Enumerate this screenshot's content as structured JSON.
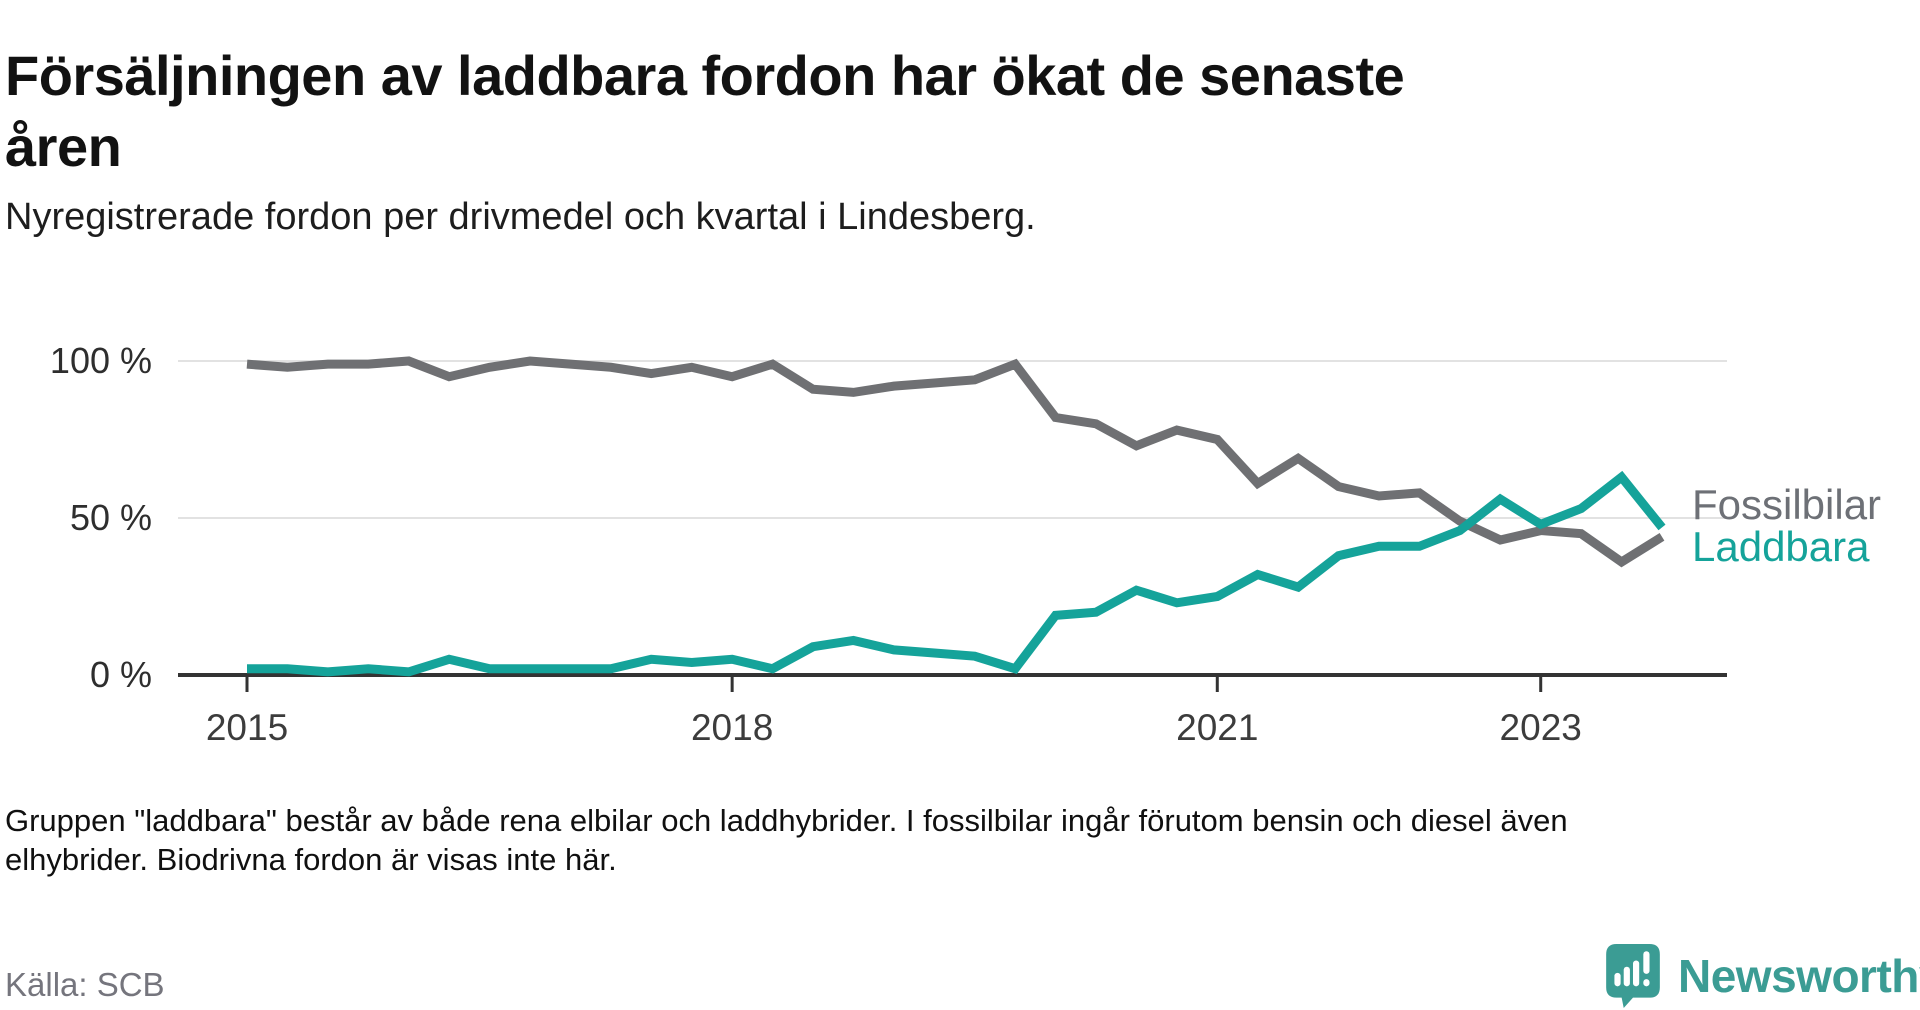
{
  "header": {
    "title_lines": [
      "Försäljningen av laddbara fordon har ökat de senaste",
      "åren"
    ],
    "subtitle": "Nyregistrerade fordon per drivmedel och kvartal i Lindesberg."
  },
  "chart_data": {
    "type": "line",
    "unit": "%",
    "categories": [
      "2015K1",
      "2015K2",
      "2015K3",
      "2015K4",
      "2016K1",
      "2016K2",
      "2016K3",
      "2016K4",
      "2017K1",
      "2017K2",
      "2017K3",
      "2017K4",
      "2018K1",
      "2018K2",
      "2018K3",
      "2018K4",
      "2019K1",
      "2019K2",
      "2019K3",
      "2019K4",
      "2020K1",
      "2020K2",
      "2020K3",
      "2020K4",
      "2021K1",
      "2021K2",
      "2021K3",
      "2021K4",
      "2022K1",
      "2022K2",
      "2022K3",
      "2022K4",
      "2023K1",
      "2023K2",
      "2023K3",
      "2023K4"
    ],
    "series": [
      {
        "name": "Fossilbilar",
        "color": "#6f7073",
        "values": [
          99,
          98,
          99,
          99,
          100,
          95,
          98,
          100,
          99,
          98,
          96,
          98,
          95,
          99,
          91,
          90,
          92,
          93,
          94,
          99,
          82,
          80,
          73,
          78,
          75,
          61,
          69,
          60,
          57,
          58,
          49,
          43,
          46,
          45,
          36,
          44
        ]
      },
      {
        "name": "Laddbara",
        "color": "#15a39a",
        "values": [
          2,
          2,
          1,
          2,
          1,
          5,
          2,
          2,
          2,
          2,
          5,
          4,
          5,
          2,
          9,
          11,
          8,
          7,
          6,
          2,
          19,
          20,
          27,
          23,
          25,
          32,
          28,
          38,
          41,
          41,
          46,
          56,
          48,
          53,
          63,
          47
        ]
      }
    ],
    "ylim": [
      0,
      100
    ],
    "yticks": [
      {
        "value": 100,
        "label": "100 %"
      },
      {
        "value": 50,
        "label": "50 %"
      },
      {
        "value": 0,
        "label": "0 %"
      }
    ],
    "xticks": [
      {
        "label": "2015",
        "index": 0
      },
      {
        "label": "2018",
        "index": 12
      },
      {
        "label": "2021",
        "index": 24
      },
      {
        "label": "2023",
        "index": 32
      }
    ],
    "grid": "horizontal",
    "legend_position": "right-of-line-end"
  },
  "legend": {
    "items": [
      {
        "label": "Fossilbilar",
        "color": "#6d7076"
      },
      {
        "label": "Laddbara",
        "color": "#15a39a"
      }
    ]
  },
  "footnote": {
    "lines": [
      "Gruppen \"laddbara\" består av både rena elbilar och laddhybrider. I fossilbilar ingår förutom bensin och diesel även",
      "elhybrider. Biodrivna fordon är visas inte här."
    ]
  },
  "source": {
    "label": "Källa: SCB"
  },
  "branding": {
    "logo_text": "Newsworthy",
    "logo_color": "#3b9c94"
  },
  "colors": {
    "accent_teal": "#15a39a",
    "line_gray": "#6f7073",
    "grid_line": "#e2e2e2",
    "axis_line": "#333333",
    "tick_label": "#3c3c3c"
  }
}
